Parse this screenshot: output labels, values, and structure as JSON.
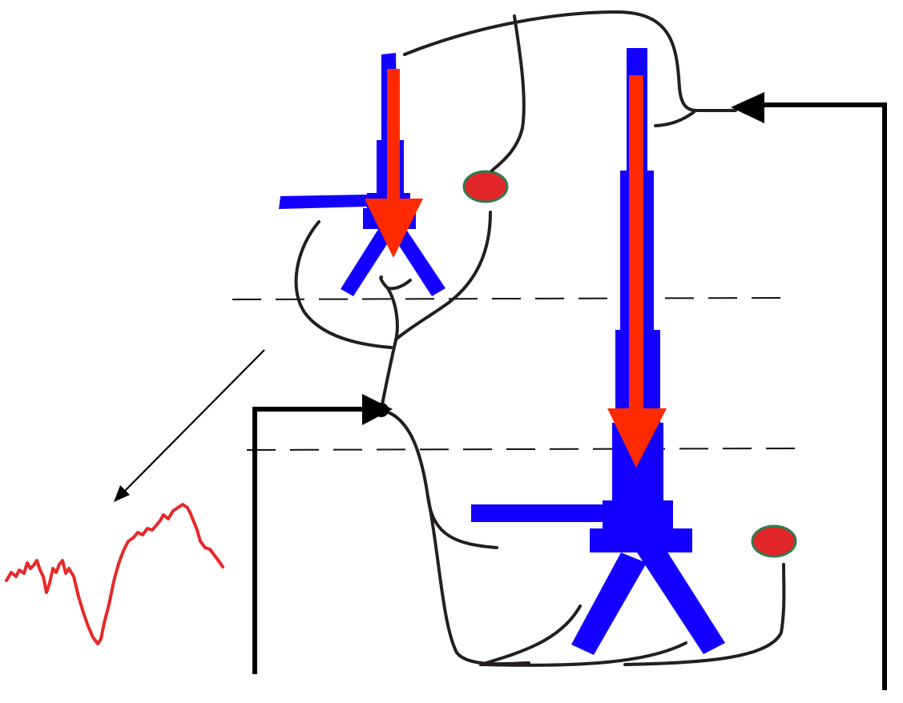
{
  "diagram": {
    "colors": {
      "neuron": "#1400ff",
      "signal_arrow": "#ff2a00",
      "dendrite_wire": "#231f20",
      "input_wire": "#000000",
      "electrode_fill": "#e3262a",
      "electrode_outline": "#2e7d4f",
      "dashed_line": "#111111",
      "waveform": "#e8282a"
    },
    "icons": {
      "neuron": "pyramidal-neuron-icon",
      "electrode": "electrode-icon",
      "signal": "downward-arrow-icon",
      "waveform": "signal-waveform-icon"
    }
  }
}
